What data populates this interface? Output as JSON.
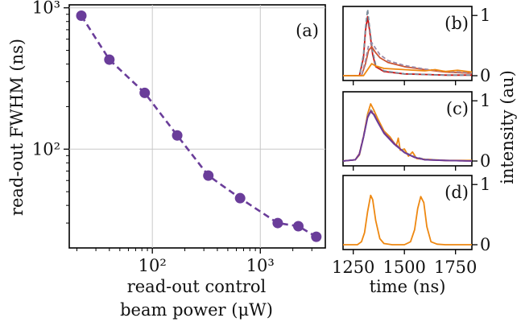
{
  "chart_data": [
    {
      "panel": "(a)",
      "type": "line",
      "x_scale": "log",
      "y_scale": "log",
      "xlabel_line1": "read-out control",
      "xlabel_line2": "beam power (μW)",
      "ylabel": "read-out FWHM (ns)",
      "xlim": [
        17,
        4000
      ],
      "ylim": [
        20,
        1050
      ],
      "x_ticks": [
        100,
        1000
      ],
      "x_tick_labels": [
        "10²",
        "10³"
      ],
      "y_ticks": [
        100,
        1000
      ],
      "y_tick_labels": [
        "10²",
        "10³"
      ],
      "grid": true,
      "series": [
        {
          "color": "#6a3d9a",
          "style": "dashed line with circle markers",
          "x": [
            22,
            40,
            85,
            170,
            330,
            650,
            1450,
            2250,
            3300
          ],
          "y": [
            880,
            430,
            250,
            125,
            65,
            45,
            30,
            28.5,
            24
          ]
        }
      ]
    },
    {
      "panel": "(b)",
      "type": "line",
      "xlim": [
        1200,
        1830
      ],
      "ylim": [
        -0.08,
        1.15
      ],
      "y_ticks": [
        0,
        1
      ],
      "y_tick_labels": [
        "0",
        "1"
      ],
      "series": [
        {
          "color": "#cc1111",
          "x": [
            1200,
            1280,
            1300,
            1310,
            1320,
            1330,
            1345,
            1360,
            1400,
            1500,
            1600,
            1700,
            1830
          ],
          "y": [
            0,
            0,
            0.3,
            0.75,
            0.98,
            0.75,
            0.35,
            0.15,
            0.07,
            0.03,
            0.02,
            0.01,
            0.01
          ]
        },
        {
          "color": "#7a8a99",
          "style": "dashed",
          "x": [
            1200,
            1280,
            1300,
            1310,
            1320,
            1330,
            1345,
            1360,
            1400,
            1500,
            1600,
            1700,
            1830
          ],
          "y": [
            0,
            0,
            0.35,
            0.8,
            1.1,
            0.8,
            0.4,
            0.18,
            0.08,
            0.03,
            0.02,
            0.01,
            0.01
          ]
        },
        {
          "color": "#cc5533",
          "x": [
            1200,
            1290,
            1310,
            1325,
            1340,
            1360,
            1380,
            1420,
            1500,
            1600,
            1700,
            1830
          ],
          "y": [
            0,
            0,
            0.2,
            0.42,
            0.48,
            0.38,
            0.3,
            0.22,
            0.15,
            0.1,
            0.06,
            0.04
          ]
        },
        {
          "color": "#9b8aa8",
          "style": "dashed",
          "x": [
            1200,
            1290,
            1310,
            1325,
            1340,
            1360,
            1380,
            1420,
            1500,
            1600,
            1700,
            1830
          ],
          "y": [
            0,
            0,
            0.25,
            0.5,
            0.55,
            0.45,
            0.35,
            0.25,
            0.17,
            0.11,
            0.07,
            0.05
          ]
        },
        {
          "color": "#ee8811",
          "x": [
            1200,
            1300,
            1320,
            1340,
            1360,
            1400,
            1500,
            1600,
            1650,
            1700,
            1760,
            1830
          ],
          "y": [
            0,
            0,
            0.1,
            0.2,
            0.16,
            0.12,
            0.1,
            0.08,
            0.1,
            0.07,
            0.09,
            0.06
          ]
        }
      ]
    },
    {
      "panel": "(c)",
      "type": "line",
      "xlim": [
        1200,
        1830
      ],
      "ylim": [
        -0.08,
        1.15
      ],
      "y_ticks": [
        0,
        1
      ],
      "y_tick_labels": [
        "0",
        "1"
      ],
      "series": [
        {
          "color": "#ee8811",
          "x": [
            1200,
            1260,
            1280,
            1300,
            1320,
            1335,
            1350,
            1370,
            1400,
            1430,
            1460,
            1470,
            1480,
            1500,
            1520,
            1540,
            1560,
            1600,
            1650,
            1700,
            1750,
            1830
          ],
          "y": [
            0,
            0.02,
            0.1,
            0.4,
            0.78,
            0.95,
            0.85,
            0.7,
            0.5,
            0.4,
            0.25,
            0.38,
            0.18,
            0.2,
            0.08,
            0.15,
            0.04,
            0.03,
            0.02,
            0.01,
            0.01,
            0.01
          ]
        },
        {
          "color": "#8a9aaa",
          "style": "dashed",
          "x": [
            1200,
            1260,
            1280,
            1300,
            1320,
            1335,
            1350,
            1370,
            1400,
            1450,
            1500,
            1550,
            1600,
            1700,
            1830
          ],
          "y": [
            0,
            0.02,
            0.12,
            0.42,
            0.75,
            0.85,
            0.8,
            0.66,
            0.48,
            0.3,
            0.15,
            0.07,
            0.03,
            0.01,
            0
          ]
        },
        {
          "color": "#aa2244",
          "x": [
            1200,
            1260,
            1280,
            1300,
            1320,
            1335,
            1350,
            1370,
            1400,
            1450,
            1500,
            1550,
            1600,
            1700,
            1830
          ],
          "y": [
            0,
            0.02,
            0.12,
            0.4,
            0.73,
            0.83,
            0.78,
            0.65,
            0.47,
            0.29,
            0.14,
            0.06,
            0.02,
            0.01,
            0
          ]
        },
        {
          "color": "#6a3d9a",
          "x": [
            1200,
            1260,
            1280,
            1300,
            1320,
            1335,
            1350,
            1370,
            1400,
            1450,
            1500,
            1550,
            1600,
            1700,
            1830
          ],
          "y": [
            0,
            0.02,
            0.11,
            0.39,
            0.72,
            0.82,
            0.77,
            0.64,
            0.46,
            0.28,
            0.14,
            0.06,
            0.02,
            0.01,
            0
          ]
        }
      ]
    },
    {
      "panel": "(d)",
      "type": "line",
      "xlabel": "time (ns)",
      "shared_ylabel": "intensity (au)",
      "xlim": [
        1200,
        1830
      ],
      "ylim": [
        -0.08,
        1.15
      ],
      "x_ticks": [
        1250,
        1500,
        1750
      ],
      "x_tick_labels": [
        "1250",
        "1500",
        "1750"
      ],
      "y_ticks": [
        0,
        1
      ],
      "y_tick_labels": [
        "0",
        "1"
      ],
      "series": [
        {
          "color": "#ee8811",
          "x": [
            1200,
            1270,
            1290,
            1305,
            1320,
            1335,
            1345,
            1360,
            1380,
            1400,
            1440,
            1500,
            1530,
            1550,
            1565,
            1580,
            1595,
            1610,
            1630,
            1660,
            1700,
            1760,
            1830
          ],
          "y": [
            0,
            0,
            0.05,
            0.2,
            0.55,
            0.82,
            0.75,
            0.4,
            0.1,
            0.02,
            0,
            0,
            0.05,
            0.25,
            0.6,
            0.8,
            0.7,
            0.3,
            0.05,
            0.01,
            0,
            0,
            0
          ]
        }
      ]
    }
  ]
}
